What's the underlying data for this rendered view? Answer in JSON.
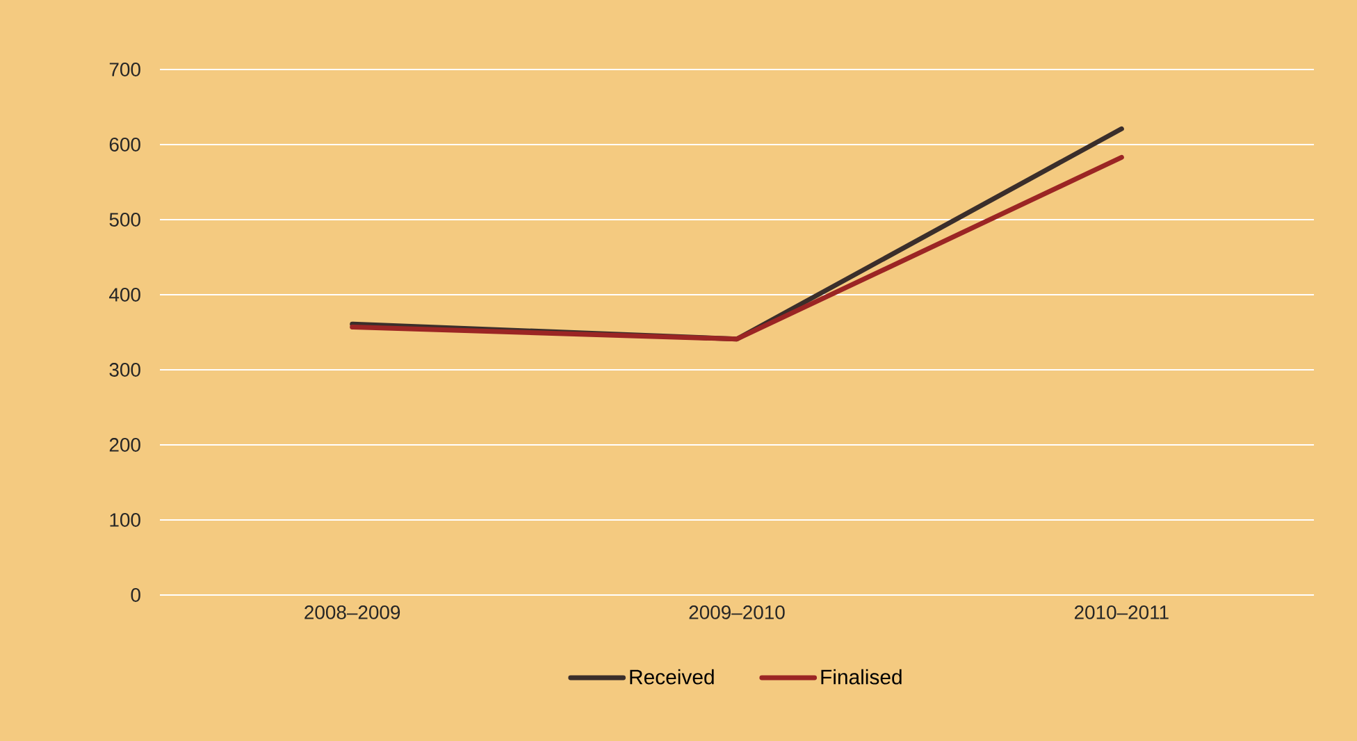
{
  "chart_data": {
    "type": "line",
    "categories": [
      "2008–2009",
      "2009–2010",
      "2010–2011"
    ],
    "series": [
      {
        "name": "Received",
        "color": "#3a2e2b",
        "values": [
          361,
          341,
          621
        ]
      },
      {
        "name": "Finalised",
        "color": "#9b2524",
        "values": [
          357,
          341,
          583
        ]
      }
    ],
    "ylim": [
      0,
      700
    ],
    "yticks": [
      0,
      100,
      200,
      300,
      400,
      500,
      600,
      700
    ],
    "grid": "y",
    "legend": "bottom",
    "marker": "none",
    "line_style": "solid"
  }
}
